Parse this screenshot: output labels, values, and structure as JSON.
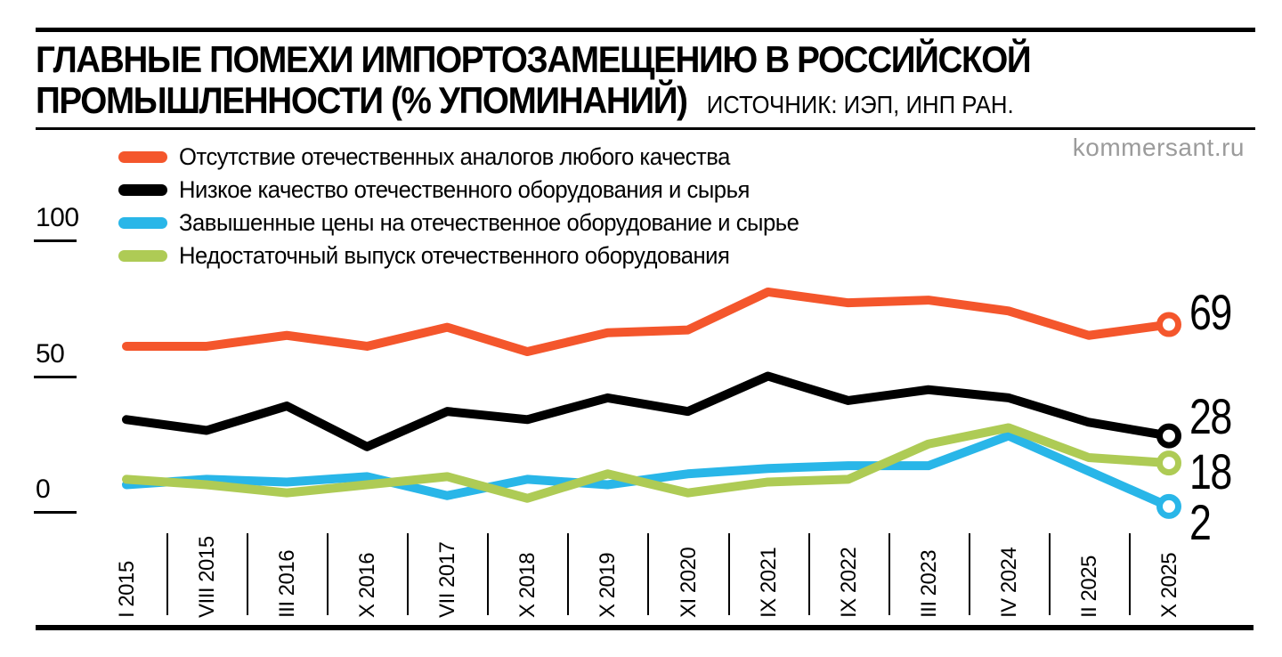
{
  "header": {
    "title_line1": "ГЛАВНЫЕ ПОМЕХИ ИМПОРТОЗАМЕЩЕНИЮ В РОССИЙСКОЙ",
    "title_line2": "ПРОМЫШЛЕННОСТИ (% УПОМИНАНИЙ)",
    "source": "ИСТОЧНИК: ИЭП, ИНП РАН.",
    "watermark": "kommersant.ru"
  },
  "legend": [
    {
      "label": "Отсутствие отечественных аналогов любого качества",
      "color": "#F4562C"
    },
    {
      "label": "Низкое качество отечественного оборудования и сырья",
      "color": "#000000"
    },
    {
      "label": "Завышенные цены на отечественное оборудование и сырье",
      "color": "#29B6E8"
    },
    {
      "label": "Недостаточный выпуск отечественного оборудования",
      "color": "#AECB55"
    }
  ],
  "chart_data": {
    "type": "line",
    "title": "ГЛАВНЫЕ ПОМЕХИ ИМПОРТОЗАМЕЩЕНИЮ В РОССИЙСКОЙ ПРОМЫШЛЕННОСТИ (% УПОМИНАНИЙ)",
    "categories": [
      "I 2015",
      "VIII 2015",
      "III 2016",
      "X 2016",
      "VII 2017",
      "X 2018",
      "X 2019",
      "XI 2020",
      "IX 2021",
      "IX 2022",
      "III 2023",
      "IV 2024",
      "II 2025",
      "X 2025"
    ],
    "series": [
      {
        "name": "Отсутствие отечественных аналогов любого качества",
        "color": "#F4562C",
        "values": [
          61,
          61,
          65,
          61,
          68,
          59,
          66,
          67,
          81,
          77,
          78,
          74,
          65,
          69
        ],
        "end_label": "69"
      },
      {
        "name": "Низкое качество отечественного оборудования и сырья",
        "color": "#000000",
        "values": [
          34,
          30,
          39,
          24,
          37,
          34,
          42,
          37,
          50,
          41,
          45,
          42,
          33,
          28
        ],
        "end_label": "28"
      },
      {
        "name": "Завышенные цены на отечественное оборудование и сырье",
        "color": "#29B6E8",
        "values": [
          10,
          12,
          11,
          13,
          6,
          12,
          10,
          14,
          16,
          17,
          17,
          28,
          15,
          2
        ],
        "end_label": "2"
      },
      {
        "name": "Недостаточный выпуск отечественного оборудования",
        "color": "#AECB55",
        "values": [
          12,
          10,
          7,
          10,
          13,
          5,
          14,
          7,
          11,
          12,
          25,
          31,
          20,
          18
        ],
        "end_label": "18"
      }
    ],
    "ylabel": "",
    "xlabel": "",
    "ylim": [
      0,
      100
    ],
    "y_ticks": [
      100,
      50,
      0
    ],
    "grid": false,
    "legend_position": "top-left"
  }
}
